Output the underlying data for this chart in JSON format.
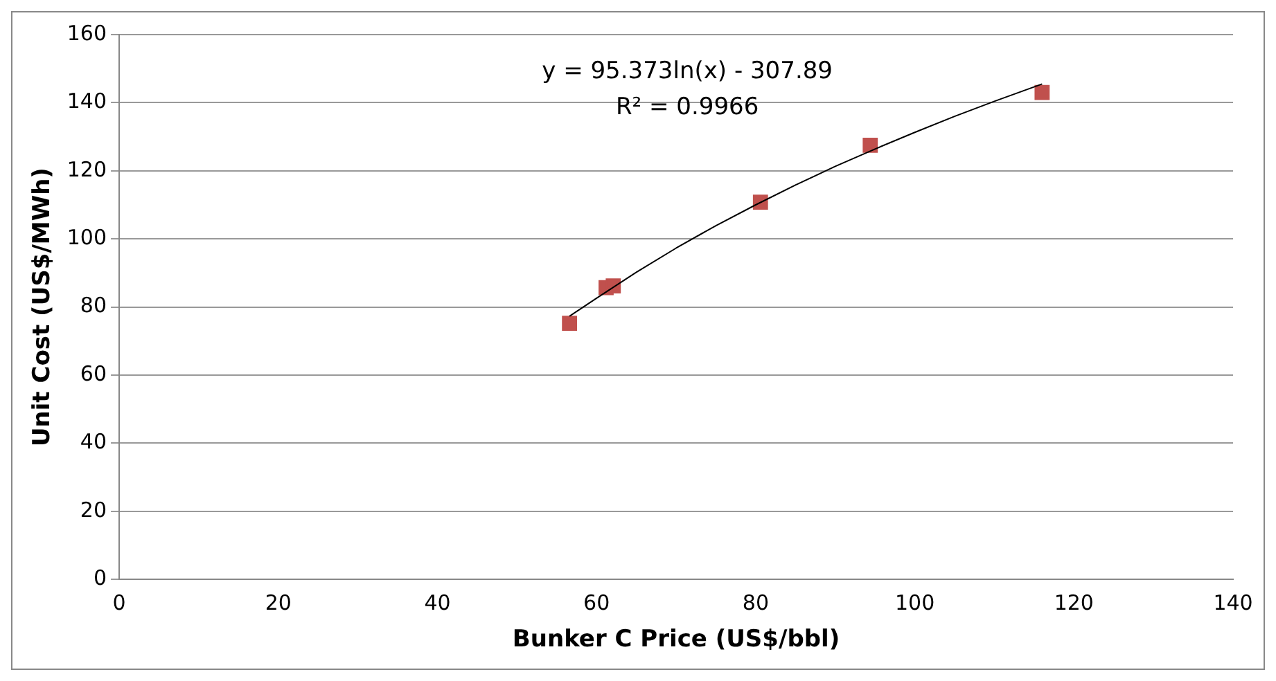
{
  "chart_data": {
    "type": "scatter",
    "xlabel": "Bunker C Price (US$/bbl)",
    "ylabel": "Unit Cost (US$/MWh)",
    "series": [
      {
        "color": "#c0504d",
        "marker": "square",
        "x": [
          56.6,
          61.2,
          62.1,
          80.6,
          94.4,
          116
        ],
        "values": [
          75.2,
          85.7,
          86.2,
          110.8,
          127.5,
          143
        ]
      },
      {
        "type": "line",
        "color": "#000000",
        "marker": "none",
        "x": [
          56.6,
          60,
          65,
          70,
          75,
          80,
          85,
          90,
          95,
          100,
          105,
          110,
          116
        ],
        "values": [
          77.3,
          82.6,
          90.2,
          97.3,
          103.9,
          110.0,
          115.8,
          121.3,
          126.4,
          131.3,
          136.0,
          140.4,
          145.5
        ]
      }
    ],
    "xlim": [
      0,
      140
    ],
    "xticks": [
      0,
      20,
      40,
      60,
      80,
      100,
      120,
      140
    ],
    "ylim": [
      0,
      160
    ],
    "yticks": [
      0,
      20,
      40,
      60,
      80,
      100,
      120,
      140,
      160
    ],
    "grid": "y",
    "legend": false,
    "annotations": [
      "y = 95.373ln(x) - 307.89",
      "R² = 0.9966"
    ]
  }
}
